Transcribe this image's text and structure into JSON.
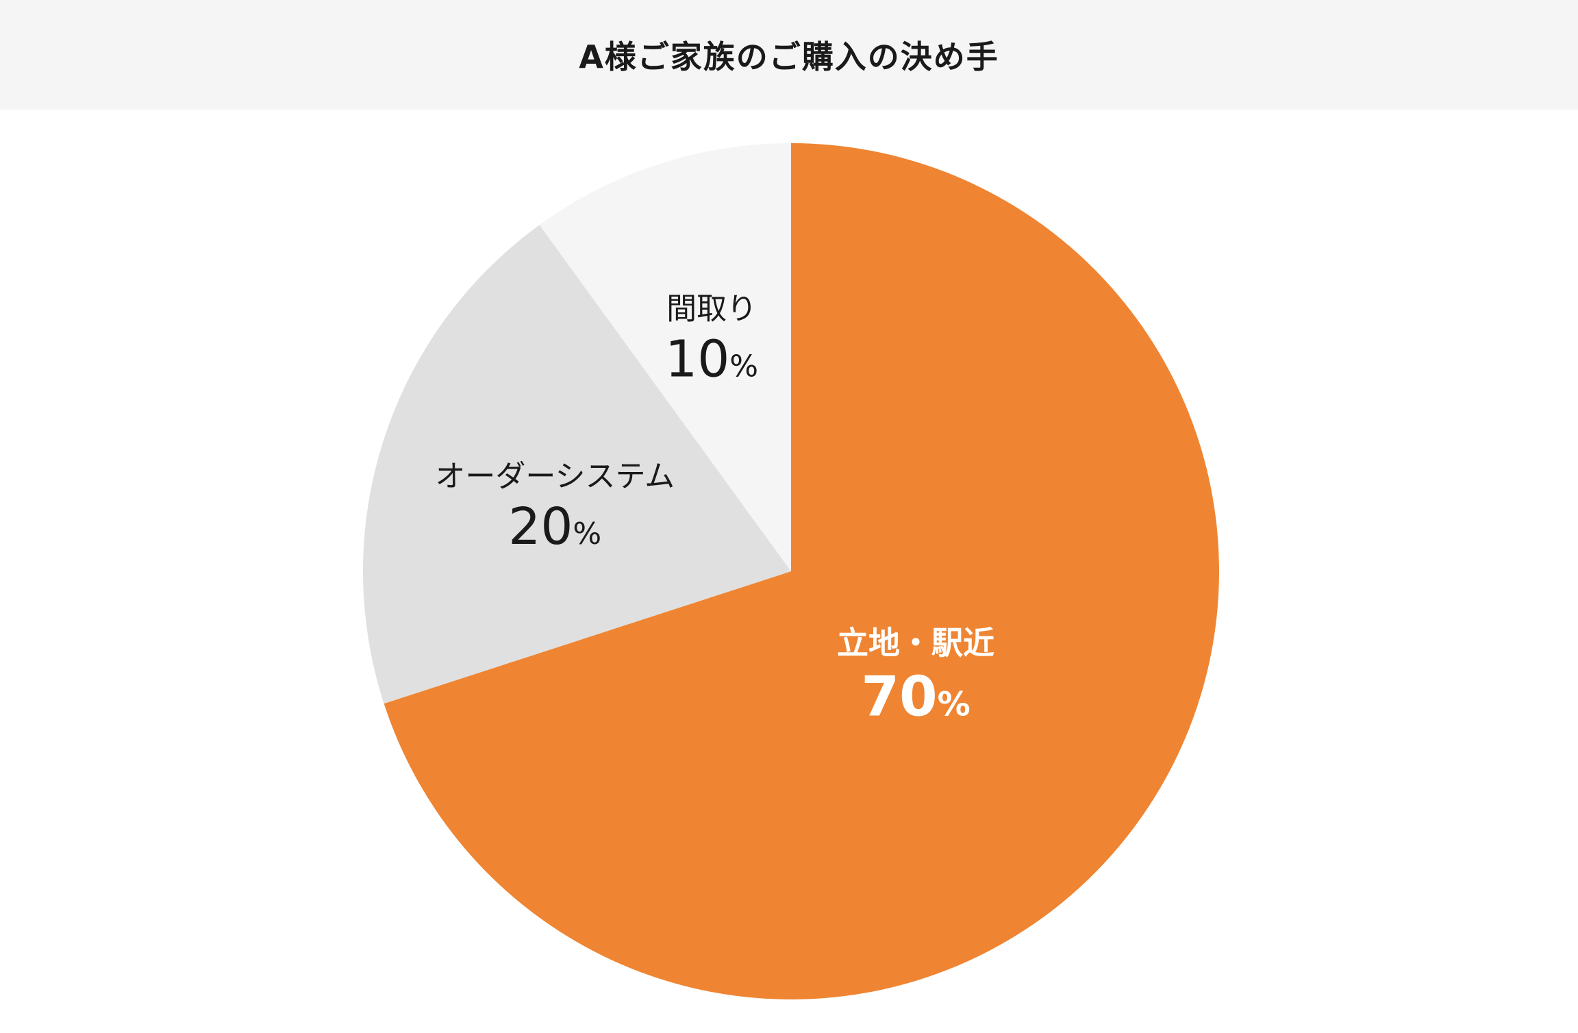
{
  "title": "A様ご家族のご購入の決め手",
  "chart_data": {
    "type": "pie",
    "title": "A様ご家族のご購入の決め手",
    "unit": "%",
    "categories": [
      "立地・駅近",
      "オーダーシステム",
      "間取り"
    ],
    "values": [
      70,
      20,
      10
    ],
    "value_labels": [
      "70",
      "20",
      "10"
    ],
    "colors": [
      "#ef8532",
      "#e0e0e0",
      "#f5f5f5"
    ],
    "label_colors": [
      "#ffffff",
      "#1a1a1a",
      "#1a1a1a"
    ],
    "start": "12 o'clock",
    "direction": "clockwise"
  }
}
